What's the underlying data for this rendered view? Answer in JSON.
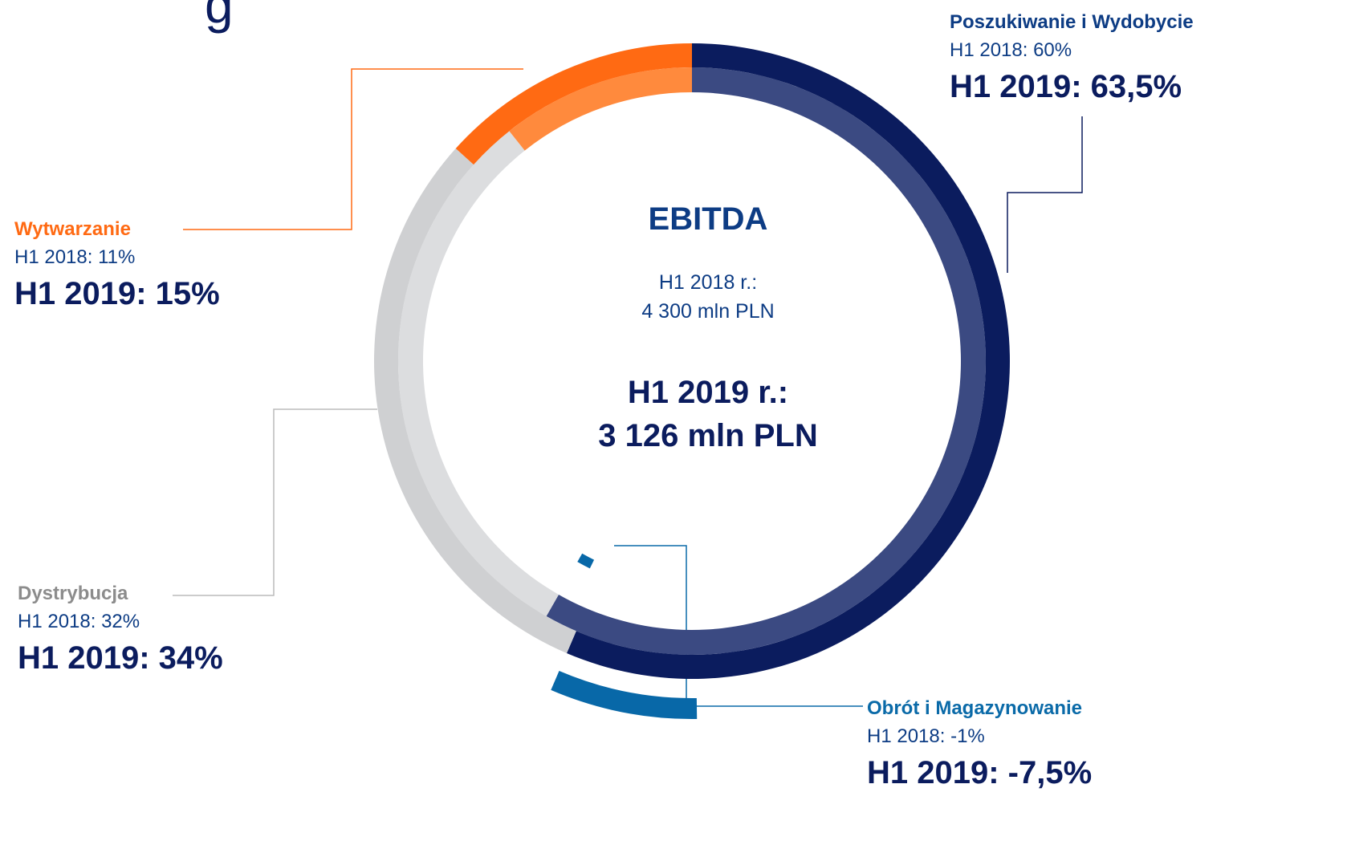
{
  "chart_data": {
    "type": "donut",
    "title": "g",
    "center": {
      "title": "EBITDA",
      "prev_label": "H1 2018 r.:",
      "prev_value": "4 300 mln PLN",
      "curr_label": "H1 2019 r.:",
      "curr_value": "3 126 mln PLN"
    },
    "categories": [
      "H1 2018",
      "H1 2019"
    ],
    "series": [
      {
        "name": "Poszukiwanie i Wydobycie",
        "label_color": "#0d3c84",
        "colors": [
          "#3b4a82",
          "#0b1c5e"
        ],
        "values": [
          60,
          63.5
        ],
        "value_labels": [
          "H1 2018: 60%",
          "H1 2019: 63,5%"
        ]
      },
      {
        "name": "Dystrybucja",
        "label_color": "#8c8c8c",
        "colors": [
          "#dcdddf",
          "#cfd0d2"
        ],
        "values": [
          32,
          34
        ],
        "value_labels": [
          "H1 2018: 32%",
          "H1 2019: 34%"
        ]
      },
      {
        "name": "Wytwarzanie",
        "label_color": "#ff6a13",
        "colors": [
          "#ff8a3d",
          "#ff6a13"
        ],
        "values": [
          11,
          15
        ],
        "value_labels": [
          "H1 2018: 11%",
          "H1 2019: 15%"
        ]
      },
      {
        "name": "Obrót i Magazynowanie",
        "label_color": "#0a6aa8",
        "colors": [
          "#0868a8",
          "#0868a8"
        ],
        "values": [
          -1,
          -7.5
        ],
        "value_labels": [
          "H1 2018: -1%",
          "H1 2019: -7,5%"
        ]
      }
    ]
  }
}
